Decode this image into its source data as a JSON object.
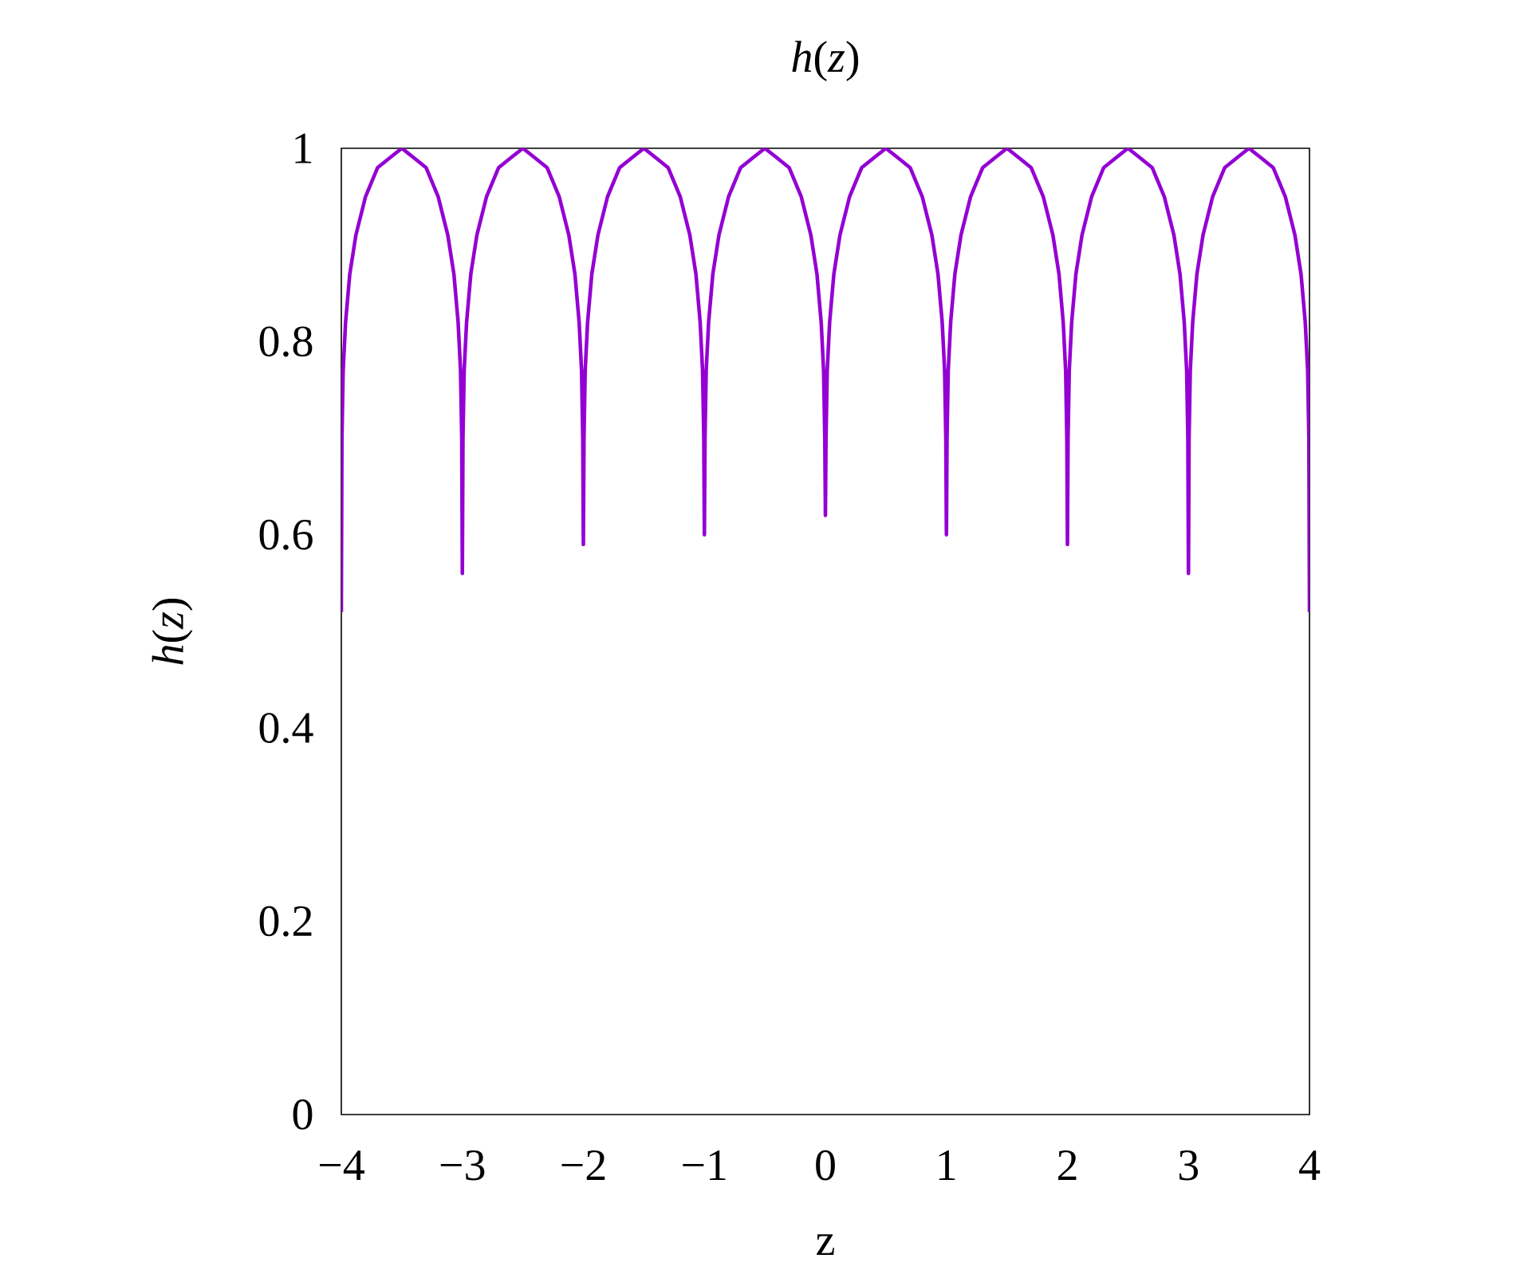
{
  "chart_data": {
    "type": "line",
    "title": "*h*(*z*)",
    "xlabel": "z",
    "ylabel": "*h*(*z*)",
    "xlim": [
      -4,
      4
    ],
    "ylim": [
      0,
      1
    ],
    "xticks": [
      {
        "value": -4,
        "label": "−4"
      },
      {
        "value": -3,
        "label": "−3"
      },
      {
        "value": -2,
        "label": "−2"
      },
      {
        "value": -1,
        "label": "−1"
      },
      0,
      1,
      2,
      3,
      4
    ],
    "yticks": [
      0,
      0.2,
      0.4,
      0.6,
      0.8,
      1
    ],
    "color": "#9400d3",
    "marker": "none",
    "line_style": "solid",
    "x": [
      -4,
      -3.995,
      -3.985,
      -3.965,
      -3.93,
      -3.88,
      -3.8,
      -3.7,
      -3.6,
      -3.5,
      -3.4,
      -3.3,
      -3.2,
      -3.12,
      -3.07,
      -3.035,
      -3.015,
      -3.005,
      -3,
      -2.995,
      -2.985,
      -2.965,
      -2.93,
      -2.88,
      -2.8,
      -2.7,
      -2.6,
      -2.5,
      -2.4,
      -2.3,
      -2.2,
      -2.12,
      -2.07,
      -2.035,
      -2.015,
      -2.005,
      -2,
      -1.995,
      -1.985,
      -1.965,
      -1.93,
      -1.88,
      -1.8,
      -1.7,
      -1.6,
      -1.5,
      -1.4,
      -1.3,
      -1.2,
      -1.12,
      -1.07,
      -1.035,
      -1.015,
      -1.005,
      -1,
      -0.995,
      -0.985,
      -0.965,
      -0.93,
      -0.88,
      -0.8,
      -0.7,
      -0.6,
      -0.5,
      -0.4,
      -0.3,
      -0.2,
      -0.12,
      -0.07,
      -0.035,
      -0.015,
      -0.005,
      0,
      0.005,
      0.015,
      0.035,
      0.07,
      0.12,
      0.2,
      0.3,
      0.4,
      0.5,
      0.6,
      0.7,
      0.8,
      0.88,
      0.93,
      0.965,
      0.985,
      0.995,
      1,
      1.005,
      1.015,
      1.035,
      1.07,
      1.12,
      1.2,
      1.3,
      1.4,
      1.5,
      1.6,
      1.7,
      1.8,
      1.88,
      1.93,
      1.965,
      1.985,
      1.995,
      2,
      2.005,
      2.015,
      2.035,
      2.07,
      2.12,
      2.2,
      2.3,
      2.4,
      2.5,
      2.6,
      2.7,
      2.8,
      2.88,
      2.93,
      2.965,
      2.985,
      2.995,
      3,
      3.005,
      3.015,
      3.035,
      3.07,
      3.12,
      3.2,
      3.3,
      3.4,
      3.5,
      3.6,
      3.7,
      3.8,
      3.88,
      3.93,
      3.965,
      3.985,
      3.995,
      4
    ],
    "values": [
      0.52,
      0.7,
      0.77,
      0.82,
      0.87,
      0.91,
      0.95,
      0.98,
      0.99,
      1,
      0.99,
      0.98,
      0.95,
      0.91,
      0.87,
      0.82,
      0.77,
      0.7,
      0.56,
      0.7,
      0.77,
      0.82,
      0.87,
      0.91,
      0.95,
      0.98,
      0.99,
      1,
      0.99,
      0.98,
      0.95,
      0.91,
      0.87,
      0.82,
      0.77,
      0.7,
      0.59,
      0.7,
      0.77,
      0.82,
      0.87,
      0.91,
      0.95,
      0.98,
      0.99,
      1,
      0.99,
      0.98,
      0.95,
      0.91,
      0.87,
      0.82,
      0.77,
      0.7,
      0.6,
      0.7,
      0.77,
      0.82,
      0.87,
      0.91,
      0.95,
      0.98,
      0.99,
      1,
      0.99,
      0.98,
      0.95,
      0.91,
      0.87,
      0.82,
      0.77,
      0.7,
      0.62,
      0.7,
      0.77,
      0.82,
      0.87,
      0.91,
      0.95,
      0.98,
      0.99,
      1,
      0.99,
      0.98,
      0.95,
      0.91,
      0.87,
      0.82,
      0.77,
      0.7,
      0.6,
      0.7,
      0.77,
      0.82,
      0.87,
      0.91,
      0.95,
      0.98,
      0.99,
      1,
      0.99,
      0.98,
      0.95,
      0.91,
      0.87,
      0.82,
      0.77,
      0.7,
      0.59,
      0.7,
      0.77,
      0.82,
      0.87,
      0.91,
      0.95,
      0.98,
      0.99,
      1,
      0.99,
      0.98,
      0.95,
      0.91,
      0.87,
      0.82,
      0.77,
      0.7,
      0.56,
      0.7,
      0.77,
      0.82,
      0.87,
      0.91,
      0.95,
      0.98,
      0.99,
      1,
      0.99,
      0.98,
      0.95,
      0.91,
      0.87,
      0.82,
      0.77,
      0.7,
      0.52
    ]
  }
}
